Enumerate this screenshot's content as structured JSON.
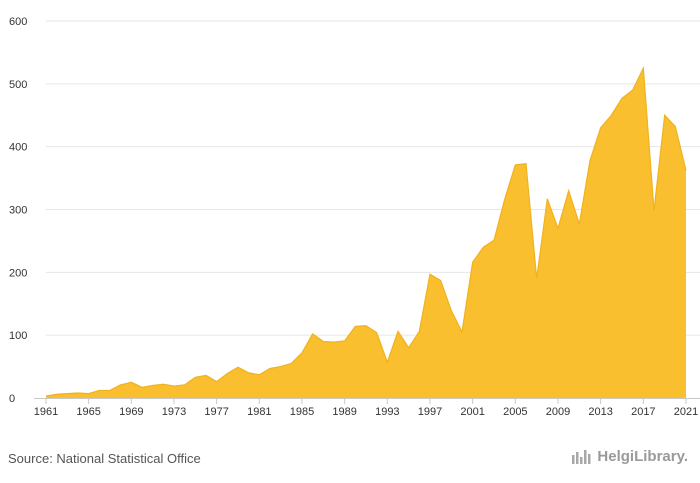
{
  "chart_data": {
    "type": "area",
    "title": "",
    "xlabel": "",
    "ylabel": "",
    "ylim": [
      0,
      600
    ],
    "xlim": [
      1961,
      2021
    ],
    "yticks": [
      0,
      100,
      200,
      300,
      400,
      500,
      600
    ],
    "xticks": [
      1961,
      1965,
      1969,
      1973,
      1977,
      1981,
      1985,
      1989,
      1993,
      1997,
      2001,
      2005,
      2009,
      2013,
      2017,
      2021
    ],
    "grid": true,
    "legend": "none",
    "colors": {
      "area": "#F9BF2E",
      "area_line": "#F0B21E"
    },
    "x": [
      1961,
      1962,
      1963,
      1964,
      1965,
      1966,
      1967,
      1968,
      1969,
      1970,
      1971,
      1972,
      1973,
      1974,
      1975,
      1976,
      1977,
      1978,
      1979,
      1980,
      1981,
      1982,
      1983,
      1984,
      1985,
      1986,
      1987,
      1988,
      1989,
      1990,
      1991,
      1992,
      1993,
      1994,
      1995,
      1996,
      1997,
      1998,
      1999,
      2000,
      2001,
      2002,
      2003,
      2004,
      2005,
      2006,
      2007,
      2008,
      2009,
      2010,
      2011,
      2012,
      2013,
      2014,
      2015,
      2016,
      2017,
      2018,
      2019,
      2020,
      2021
    ],
    "series": [
      {
        "values": [
          3,
          6,
          7,
          8,
          7,
          12,
          12,
          21,
          25,
          17,
          20,
          22,
          19,
          21,
          33,
          36,
          26,
          39,
          49,
          40,
          37,
          47,
          50,
          55,
          72,
          102,
          90,
          89,
          91,
          114,
          115,
          104,
          57,
          106,
          80,
          106,
          197,
          187,
          139,
          105,
          216,
          240,
          251,
          316,
          371,
          373,
          190,
          317,
          270,
          330,
          277,
          378,
          430,
          450,
          477,
          490,
          525,
          298,
          450,
          432,
          362
        ]
      }
    ]
  },
  "footer": {
    "source": "Source: National Statistical Office",
    "brand": "HelgiLibrary."
  }
}
